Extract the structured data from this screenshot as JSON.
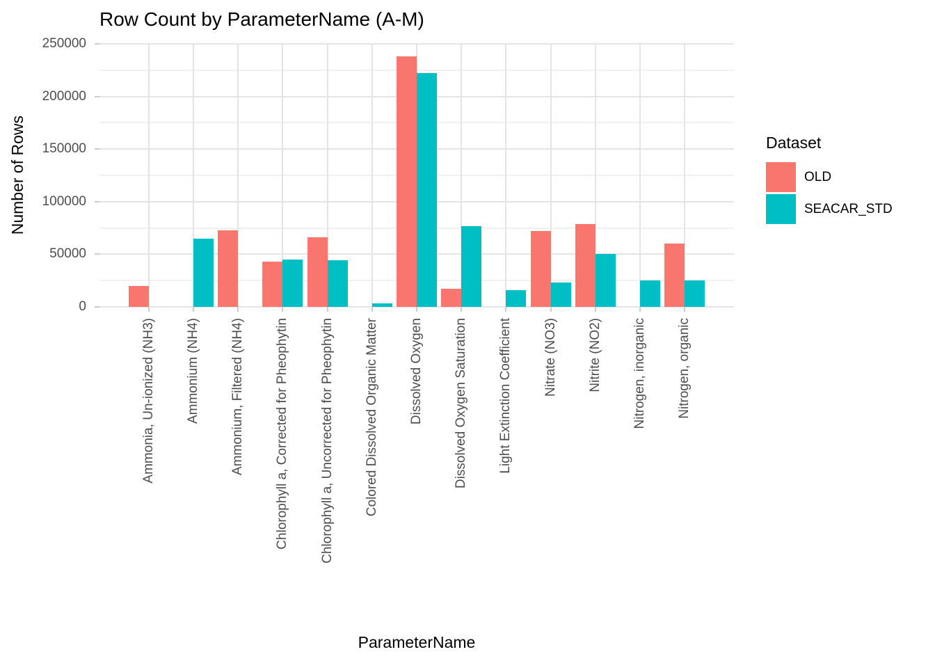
{
  "chart_data": {
    "type": "bar",
    "title": "Row Count by ParameterName (A-M)",
    "xlabel": "ParameterName",
    "ylabel": "Number of Rows",
    "legend_title": "Dataset",
    "legend_position": "right",
    "grid": true,
    "background": "#ffffff",
    "ylim": [
      0,
      250000
    ],
    "yticks": [
      0,
      50000,
      100000,
      150000,
      200000,
      250000
    ],
    "ytick_labels": [
      "0",
      "50000",
      "100000",
      "150000",
      "200000",
      "250000"
    ],
    "yminor_step": 25000,
    "bar_orientation": "vertical-grouped-dodged",
    "xtick_label_rotation_degrees": 90,
    "categories": [
      "Ammonia, Un-ionized (NH3)",
      "Ammonium (NH4)",
      "Ammonium, Filtered (NH4)",
      "Chlorophyll a, Corrected for Pheophytin",
      "Chlorophyll a, Uncorrected for Pheophytin",
      "Colored Dissolved Organic Matter",
      "Dissolved Oxygen",
      "Dissolved Oxygen Saturation",
      "Light Extinction Coefficient",
      "Nitrate (NO3)",
      "Nitrite (NO2)",
      "Nitrogen, inorganic",
      "Nitrogen, organic"
    ],
    "series": [
      {
        "name": "OLD",
        "color": "#F8766D",
        "values": [
          20000,
          null,
          73000,
          43000,
          66000,
          null,
          238000,
          17000,
          null,
          72000,
          79000,
          null,
          60000
        ]
      },
      {
        "name": "SEACAR_STD",
        "color": "#00BFC4",
        "values": [
          null,
          65000,
          null,
          45000,
          44000,
          3000,
          222000,
          77000,
          16000,
          23000,
          50000,
          25000,
          25000
        ]
      }
    ]
  }
}
